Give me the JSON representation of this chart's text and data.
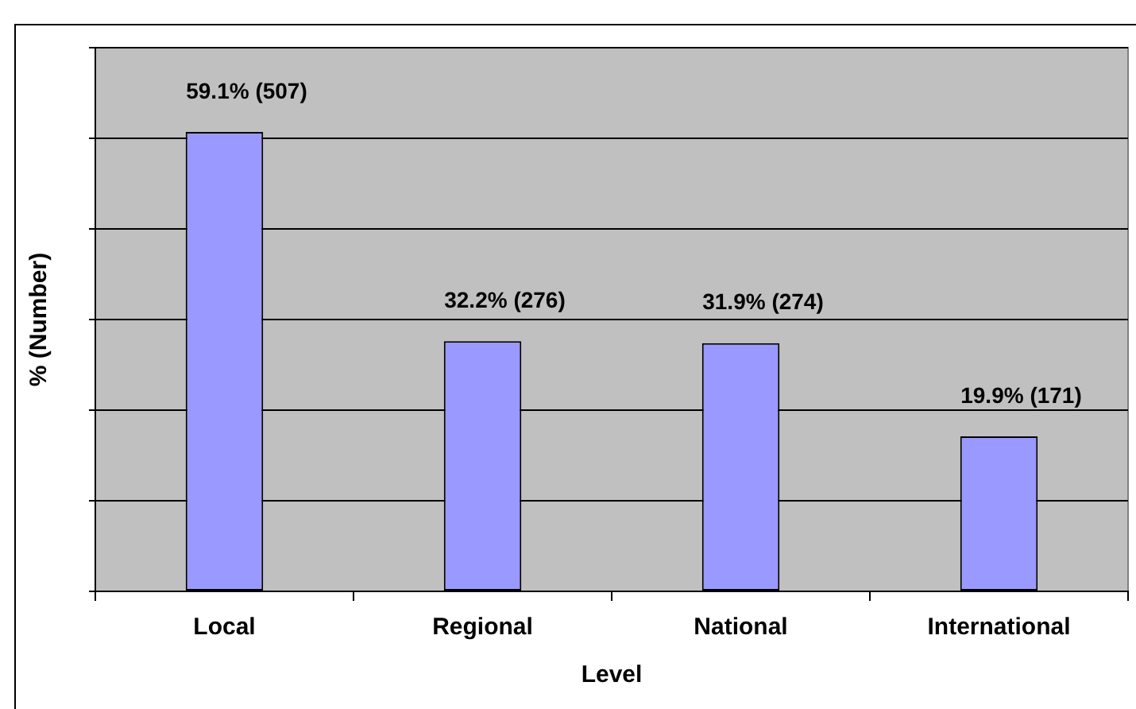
{
  "chart_data": {
    "type": "bar",
    "xlabel": "Level",
    "ylabel": "% (Number)",
    "categories": [
      "Local",
      "Regional",
      "National",
      "International"
    ],
    "values": [
      507,
      276,
      274,
      171
    ],
    "value_labels": [
      "59.1% (507)",
      "32.2% (276)",
      "31.9% (274)",
      "19.9% (171)"
    ],
    "color": "#9999ff",
    "ylim": [
      0,
      600
    ],
    "yticks": [
      {
        "value": 0,
        "label": null
      },
      {
        "value": 100,
        "label": null
      },
      {
        "value": 200,
        "label": null
      },
      {
        "value": 300,
        "label": null
      },
      {
        "value": 400,
        "label": null
      },
      {
        "value": 500,
        "label": null
      },
      {
        "value": 600,
        "label": null
      }
    ],
    "grid": "y",
    "tick_labels": "x"
  }
}
